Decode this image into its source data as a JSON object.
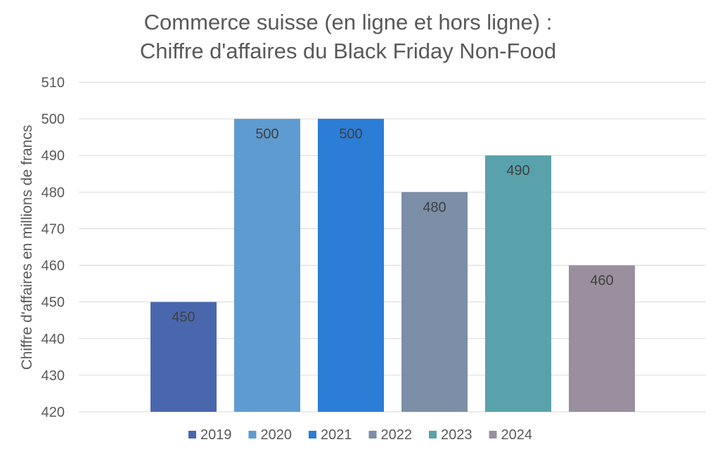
{
  "title_lines": [
    "Commerce suisse (en ligne et hors ligne) :",
    "Chiffre d'affaires du Black Friday Non-Food"
  ],
  "chart_data": {
    "type": "bar",
    "title": "Commerce suisse (en ligne et hors ligne) : Chiffre d'affaires du Black Friday Non-Food",
    "xlabel": "",
    "ylabel": "Chiffre d'affaires en millions de francs",
    "ylim": [
      420,
      510
    ],
    "yticks": [
      420,
      430,
      440,
      450,
      460,
      470,
      480,
      490,
      500,
      510
    ],
    "grid": true,
    "legend_position": "bottom",
    "series": [
      {
        "name": "2019",
        "value": 450,
        "color": "#4A67AE"
      },
      {
        "name": "2020",
        "value": 500,
        "color": "#5E9BD0"
      },
      {
        "name": "2021",
        "value": 500,
        "color": "#2B7DD6"
      },
      {
        "name": "2022",
        "value": 480,
        "color": "#7C8EA8"
      },
      {
        "name": "2023",
        "value": 490,
        "color": "#59A2AB"
      },
      {
        "name": "2024",
        "value": 460,
        "color": "#9A8F9E"
      }
    ]
  }
}
